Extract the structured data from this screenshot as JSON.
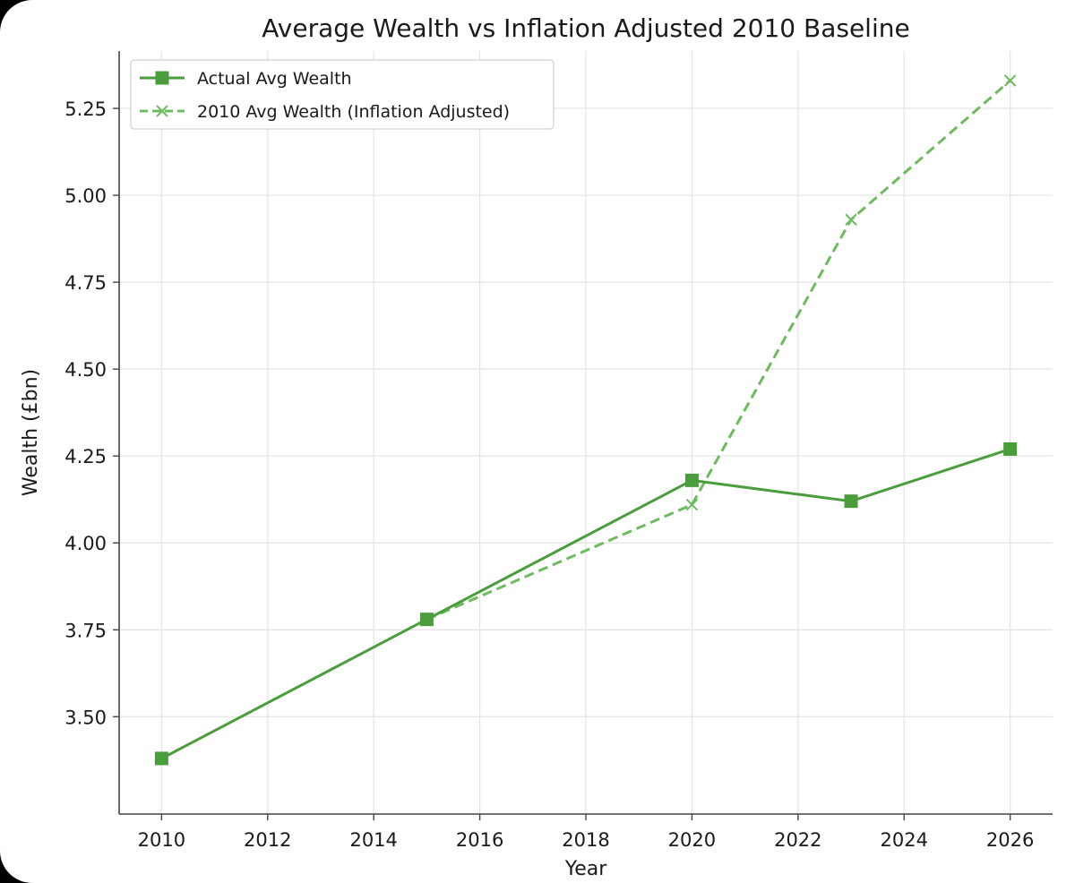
{
  "chart_data": {
    "type": "line",
    "title": "Average Wealth vs Inflation Adjusted 2010 Baseline",
    "xlabel": "Year",
    "ylabel": "Wealth (£bn)",
    "xlim": [
      2009.2,
      2026.8
    ],
    "ylim": [
      3.22,
      5.415
    ],
    "x_ticks": [
      2010,
      2012,
      2014,
      2016,
      2018,
      2020,
      2022,
      2024,
      2026
    ],
    "x_tick_labels": [
      "2010",
      "2012",
      "2014",
      "2016",
      "2018",
      "2020",
      "2022",
      "2024",
      "2026"
    ],
    "y_ticks": [
      3.5,
      3.75,
      4.0,
      4.25,
      4.5,
      4.75,
      5.0,
      5.25
    ],
    "y_tick_labels": [
      "3.50",
      "3.75",
      "4.00",
      "4.25",
      "4.50",
      "4.75",
      "5.00",
      "5.25"
    ],
    "grid": true,
    "legend_position": "top-left",
    "series": [
      {
        "name": "Actual Avg Wealth",
        "color": "#4a9d3b",
        "line_style": "solid",
        "marker": "square",
        "x": [
          2010,
          2015,
          2020,
          2023,
          2026
        ],
        "y": [
          3.38,
          3.78,
          4.18,
          4.12,
          4.27
        ]
      },
      {
        "name": "2010 Avg Wealth (Inflation Adjusted)",
        "color": "#6dbb5e",
        "line_style": "dashed",
        "marker": "x",
        "x": [
          2015,
          2020,
          2023,
          2026
        ],
        "y": [
          3.78,
          4.11,
          4.93,
          5.33
        ]
      }
    ]
  }
}
